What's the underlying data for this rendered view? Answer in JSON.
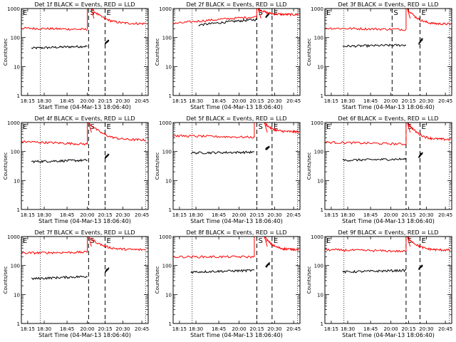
{
  "chart_data": [
    {
      "type": "line",
      "title": "Det 1f BLACK = Events, RED = LLD",
      "xlabel": "Start Time (04-Mar-13 18:06:40)",
      "ylabel": "Counts/sec",
      "xticks": [
        "18:15",
        "18:30",
        "18:45",
        "20:00",
        "20:15",
        "20:30",
        "20:45"
      ],
      "yticks": [
        "1",
        "10",
        "100",
        "1000"
      ],
      "ylim": [
        1,
        1000
      ],
      "ylog": true,
      "markers": [
        "E",
        "S",
        "E"
      ],
      "series": [
        {
          "name": "Events",
          "color": "#000000",
          "segments": [
            {
              "x": [
                0.08,
                0.52
              ],
              "y": [
                43,
                50
              ]
            },
            {
              "x": [
                0.66,
                0.69
              ],
              "y": [
                62,
                80
              ]
            }
          ]
        },
        {
          "name": "LLD",
          "color": "#ff0000",
          "segments": [
            {
              "x": [
                0,
                0.52
              ],
              "y": [
                210,
                190
              ]
            },
            {
              "x": [
                0.55,
                0.98
              ],
              "y": [
                1000,
                300
              ]
            }
          ]
        }
      ]
    },
    {
      "type": "line",
      "title": "Det 2f BLACK = Events, RED = LLD",
      "xlabel": "Start Time (04-Mar-13 18:06:40)",
      "ylabel": "Counts/sec",
      "xticks": [
        "18:15",
        "18:30",
        "18:45",
        "20:00",
        "20:15",
        "20:30",
        "20:45"
      ],
      "yticks": [
        "1",
        "10",
        "100",
        "1000"
      ],
      "ylim": [
        1,
        1000
      ],
      "ylog": true,
      "markers": [
        "S",
        "E"
      ],
      "series": [
        {
          "name": "Events",
          "color": "#000000",
          "segments": [
            {
              "x": [
                0.2,
                0.66
              ],
              "y": [
                270,
                420
              ]
            },
            {
              "x": [
                0.73,
                0.76
              ],
              "y": [
                500,
                700
              ]
            }
          ]
        },
        {
          "name": "LLD",
          "color": "#ff0000",
          "segments": [
            {
              "x": [
                0,
                0.66
              ],
              "y": [
                300,
                520
              ]
            },
            {
              "x": [
                0.67,
                0.99
              ],
              "y": [
                1000,
                620
              ]
            }
          ]
        }
      ]
    },
    {
      "type": "line",
      "title": "Det 3f BLACK = Events, RED = LLD",
      "xlabel": "Start Time (04-Mar-13 18:06:40)",
      "ylabel": "Counts/sec",
      "xticks": [
        "18:15",
        "18:30",
        "18:45",
        "20:00",
        "20:15",
        "20:30",
        "20:45"
      ],
      "yticks": [
        "1",
        "10",
        "100",
        "1000"
      ],
      "ylim": [
        1,
        1000
      ],
      "ylog": true,
      "markers": [
        "E",
        "S",
        "E"
      ],
      "series": [
        {
          "name": "Events",
          "color": "#000000",
          "segments": [
            {
              "x": [
                0.14,
                0.64
              ],
              "y": [
                50,
                55
              ]
            },
            {
              "x": [
                0.74,
                0.77
              ],
              "y": [
                60,
                90
              ]
            }
          ]
        },
        {
          "name": "LLD",
          "color": "#ff0000",
          "segments": [
            {
              "x": [
                0,
                0.64
              ],
              "y": [
                210,
                190
              ]
            },
            {
              "x": [
                0.65,
                0.99
              ],
              "y": [
                1000,
                290
              ]
            }
          ]
        }
      ]
    },
    {
      "type": "line",
      "title": "Det 4f BLACK = Events, RED = LLD",
      "xlabel": "Start Time (04-Mar-13 18:06:40)",
      "ylabel": "Counts/sec",
      "xticks": [
        "18:15",
        "18:30",
        "18:45",
        "20:00",
        "20:15",
        "20:30",
        "20:45"
      ],
      "yticks": [
        "1",
        "10",
        "100",
        "1000"
      ],
      "ylim": [
        1,
        1000
      ],
      "ylog": true,
      "markers": [
        "E",
        "S",
        "E"
      ],
      "series": [
        {
          "name": "Events",
          "color": "#000000",
          "segments": [
            {
              "x": [
                0.08,
                0.52
              ],
              "y": [
                45,
                50
              ]
            },
            {
              "x": [
                0.66,
                0.69
              ],
              "y": [
                60,
                80
              ]
            }
          ]
        },
        {
          "name": "LLD",
          "color": "#ff0000",
          "segments": [
            {
              "x": [
                0,
                0.52
              ],
              "y": [
                220,
                180
              ]
            },
            {
              "x": [
                0.53,
                0.98
              ],
              "y": [
                1000,
                250
              ]
            }
          ]
        }
      ]
    },
    {
      "type": "line",
      "title": "Det 5f BLACK = Events, RED = LLD",
      "xlabel": "Start Time (04-Mar-13 18:06:40)",
      "ylabel": "Counts/sec",
      "xticks": [
        "18:15",
        "18:30",
        "18:45",
        "20:00",
        "20:15",
        "20:30",
        "20:45"
      ],
      "yticks": [
        "1",
        "10",
        "100",
        "1000"
      ],
      "ylim": [
        1,
        1000
      ],
      "ylog": true,
      "markers": [
        "S",
        "E"
      ],
      "series": [
        {
          "name": "Events",
          "color": "#000000",
          "segments": [
            {
              "x": [
                0.14,
                0.64
              ],
              "y": [
                90,
                95
              ]
            },
            {
              "x": [
                0.73,
                0.76
              ],
              "y": [
                120,
                150
              ]
            }
          ]
        },
        {
          "name": "LLD",
          "color": "#ff0000",
          "segments": [
            {
              "x": [
                0,
                0.64
              ],
              "y": [
                350,
                310
              ]
            },
            {
              "x": [
                0.72,
                0.99
              ],
              "y": [
                1000,
                480
              ]
            }
          ]
        }
      ]
    },
    {
      "type": "line",
      "title": "Det 6f BLACK = Events, RED = LLD",
      "xlabel": "Start Time (04-Mar-13 18:06:40)",
      "ylabel": "Counts/sec",
      "xticks": [
        "18:15",
        "18:30",
        "18:45",
        "20:00",
        "20:15",
        "20:30",
        "20:45"
      ],
      "yticks": [
        "1",
        "10",
        "100",
        "1000"
      ],
      "ylim": [
        1,
        1000
      ],
      "ylog": true,
      "markers": [
        "E",
        "S",
        "E"
      ],
      "series": [
        {
          "name": "Events",
          "color": "#000000",
          "segments": [
            {
              "x": [
                0.14,
                0.64
              ],
              "y": [
                50,
                55
              ]
            },
            {
              "x": [
                0.74,
                0.77
              ],
              "y": [
                65,
                90
              ]
            }
          ]
        },
        {
          "name": "LLD",
          "color": "#ff0000",
          "segments": [
            {
              "x": [
                0,
                0.64
              ],
              "y": [
                210,
                180
              ]
            },
            {
              "x": [
                0.65,
                0.99
              ],
              "y": [
                1000,
                260
              ]
            }
          ]
        }
      ]
    },
    {
      "type": "line",
      "title": "Det 7f BLACK = Events, RED = LLD",
      "xlabel": "Start Time (04-Mar-13 18:06:40)",
      "ylabel": "Counts/sec",
      "xticks": [
        "18:15",
        "18:30",
        "18:45",
        "20:00",
        "20:15",
        "20:30",
        "20:45"
      ],
      "yticks": [
        "1",
        "10",
        "100",
        "1000"
      ],
      "ylim": [
        1,
        1000
      ],
      "ylog": true,
      "markers": [
        "E",
        "S",
        "E"
      ],
      "series": [
        {
          "name": "Events",
          "color": "#000000",
          "segments": [
            {
              "x": [
                0.08,
                0.52
              ],
              "y": [
                35,
                42
              ]
            },
            {
              "x": [
                0.66,
                0.69
              ],
              "y": [
                60,
                80
              ]
            }
          ]
        },
        {
          "name": "LLD",
          "color": "#ff0000",
          "segments": [
            {
              "x": [
                0,
                0.52
              ],
              "y": [
                270,
                290
              ]
            },
            {
              "x": [
                0.53,
                0.98
              ],
              "y": [
                1000,
                350
              ]
            }
          ]
        }
      ]
    },
    {
      "type": "line",
      "title": "Det 8f BLACK = Events, RED = LLD",
      "xlabel": "Start Time (04-Mar-13 18:06:40)",
      "ylabel": "Counts/sec",
      "xticks": [
        "18:15",
        "18:30",
        "18:45",
        "20:00",
        "20:15",
        "20:30",
        "20:45"
      ],
      "yticks": [
        "1",
        "10",
        "100",
        "1000"
      ],
      "ylim": [
        1,
        1000
      ],
      "ylog": true,
      "markers": [
        "S",
        "E"
      ],
      "series": [
        {
          "name": "Events",
          "color": "#000000",
          "segments": [
            {
              "x": [
                0.14,
                0.64
              ],
              "y": [
                60,
                68
              ]
            },
            {
              "x": [
                0.73,
                0.76
              ],
              "y": [
                90,
                120
              ]
            }
          ]
        },
        {
          "name": "LLD",
          "color": "#ff0000",
          "segments": [
            {
              "x": [
                0,
                0.64
              ],
              "y": [
                200,
                200
              ]
            },
            {
              "x": [
                0.72,
                0.99
              ],
              "y": [
                1000,
                360
              ]
            }
          ]
        }
      ]
    },
    {
      "type": "line",
      "title": "Det 9f BLACK = Events, RED = LLD",
      "xlabel": "Start Time (04-Mar-13 18:06:40)",
      "ylabel": "Counts/sec",
      "xticks": [
        "18:15",
        "18:30",
        "18:45",
        "20:00",
        "20:15",
        "20:30",
        "20:45"
      ],
      "yticks": [
        "1",
        "10",
        "100",
        "1000"
      ],
      "ylim": [
        1,
        1000
      ],
      "ylog": true,
      "markers": [
        "E",
        "S",
        "E"
      ],
      "series": [
        {
          "name": "Events",
          "color": "#000000",
          "segments": [
            {
              "x": [
                0.14,
                0.64
              ],
              "y": [
                60,
                68
              ]
            },
            {
              "x": [
                0.74,
                0.77
              ],
              "y": [
                75,
                100
              ]
            }
          ]
        },
        {
          "name": "LLD",
          "color": "#ff0000",
          "segments": [
            {
              "x": [
                0,
                0.64
              ],
              "y": [
                350,
                310
              ]
            },
            {
              "x": [
                0.65,
                0.99
              ],
              "y": [
                1000,
                340
              ]
            }
          ]
        }
      ]
    }
  ]
}
